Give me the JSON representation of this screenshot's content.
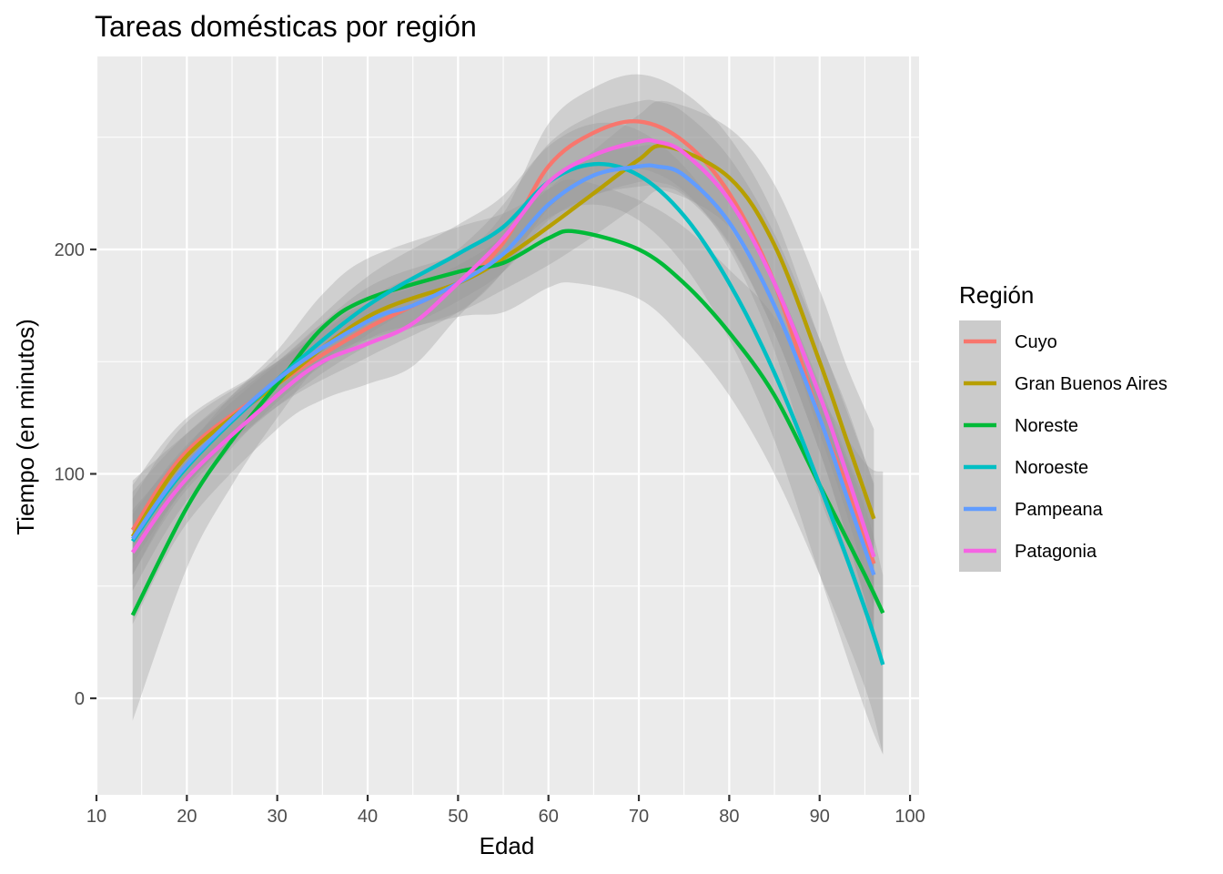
{
  "chart_data": {
    "type": "line",
    "title": "Tareas domésticas por región",
    "xlabel": "Edad",
    "ylabel": "Tiempo (en minutos)",
    "xlim": [
      10,
      101
    ],
    "ylim": [
      -43,
      286
    ],
    "x_ticks": [
      10,
      20,
      30,
      40,
      50,
      60,
      70,
      80,
      90,
      100
    ],
    "y_ticks": [
      0,
      100,
      200
    ],
    "grid": true,
    "legend": {
      "title": "Región",
      "position": "right"
    },
    "band_color": "#999999",
    "panel_background": "#ebebeb",
    "series": [
      {
        "name": "Cuyo",
        "color": "#F8766D",
        "x": [
          14,
          20,
          30,
          40,
          50,
          55,
          60,
          65,
          70,
          75,
          80,
          85,
          90,
          93,
          96
        ],
        "y": [
          75,
          110,
          140,
          165,
          185,
          203,
          237,
          252,
          257,
          248,
          225,
          185,
          125,
          95,
          60
        ],
        "lower": [
          55,
          95,
          130,
          152,
          172,
          190,
          218,
          232,
          236,
          226,
          200,
          155,
          90,
          60,
          25
        ],
        "upper": [
          95,
          125,
          150,
          178,
          198,
          216,
          256,
          272,
          278,
          270,
          250,
          215,
          160,
          130,
          95
        ]
      },
      {
        "name": "Gran Buenos Aires",
        "color": "#B79F00",
        "x": [
          14,
          20,
          30,
          40,
          50,
          55,
          60,
          65,
          70,
          73,
          80,
          85,
          90,
          93,
          96
        ],
        "y": [
          72,
          108,
          140,
          170,
          185,
          196,
          210,
          225,
          240,
          246,
          232,
          202,
          150,
          115,
          80
        ],
        "lower": [
          55,
          93,
          130,
          157,
          172,
          182,
          193,
          206,
          220,
          226,
          210,
          175,
          118,
          82,
          40
        ],
        "upper": [
          89,
          123,
          150,
          183,
          198,
          210,
          227,
          244,
          260,
          266,
          254,
          229,
          182,
          148,
          120
        ]
      },
      {
        "name": "Noreste",
        "color": "#00BA38",
        "x": [
          14,
          20,
          25,
          30,
          35,
          40,
          50,
          55,
          60,
          63,
          70,
          75,
          80,
          85,
          90,
          95,
          97
        ],
        "y": [
          37,
          85,
          115,
          140,
          165,
          178,
          190,
          194,
          205,
          208,
          200,
          185,
          163,
          135,
          95,
          55,
          38
        ],
        "lower": [
          -10,
          58,
          95,
          125,
          150,
          160,
          170,
          172,
          183,
          185,
          178,
          160,
          135,
          100,
          55,
          5,
          -25
        ],
        "upper": [
          84,
          112,
          135,
          155,
          180,
          196,
          210,
          216,
          227,
          231,
          222,
          210,
          191,
          170,
          135,
          105,
          101
        ]
      },
      {
        "name": "Noroeste",
        "color": "#00BFC4",
        "x": [
          14,
          20,
          30,
          40,
          50,
          55,
          60,
          65,
          70,
          75,
          80,
          85,
          90,
          95,
          97
        ],
        "y": [
          70,
          103,
          142,
          175,
          198,
          210,
          230,
          238,
          233,
          215,
          185,
          145,
          95,
          40,
          15
        ],
        "lower": [
          48,
          88,
          132,
          162,
          185,
          196,
          214,
          220,
          213,
          193,
          160,
          115,
          55,
          -5,
          -25
        ],
        "upper": [
          92,
          118,
          152,
          188,
          211,
          224,
          246,
          256,
          253,
          237,
          210,
          175,
          135,
          85,
          55
        ]
      },
      {
        "name": "Pampeana",
        "color": "#619CFF",
        "x": [
          14,
          20,
          30,
          40,
          45,
          50,
          55,
          60,
          65,
          70,
          72,
          75,
          80,
          85,
          90,
          93,
          96
        ],
        "y": [
          71,
          104,
          142,
          168,
          175,
          185,
          198,
          220,
          233,
          237,
          237,
          233,
          212,
          175,
          125,
          90,
          55
        ],
        "lower": [
          60,
          95,
          135,
          160,
          167,
          177,
          190,
          211,
          224,
          228,
          228,
          224,
          202,
          163,
          110,
          72,
          30
        ],
        "upper": [
          82,
          113,
          149,
          176,
          183,
          193,
          206,
          229,
          242,
          246,
          246,
          242,
          222,
          187,
          140,
          108,
          80
        ]
      },
      {
        "name": "Patagonia",
        "color": "#F564E3",
        "x": [
          14,
          20,
          30,
          35,
          40,
          45,
          50,
          55,
          60,
          65,
          70,
          72,
          75,
          80,
          85,
          90,
          93,
          96
        ],
        "y": [
          65,
          98,
          135,
          150,
          158,
          167,
          185,
          205,
          230,
          242,
          248,
          248,
          243,
          222,
          185,
          135,
          100,
          63
        ],
        "lower": [
          33,
          78,
          120,
          133,
          140,
          148,
          170,
          190,
          213,
          224,
          230,
          230,
          225,
          203,
          163,
          110,
          72,
          30
        ],
        "upper": [
          97,
          118,
          150,
          167,
          176,
          186,
          200,
          220,
          247,
          260,
          266,
          266,
          261,
          241,
          207,
          160,
          128,
          96
        ]
      }
    ]
  }
}
